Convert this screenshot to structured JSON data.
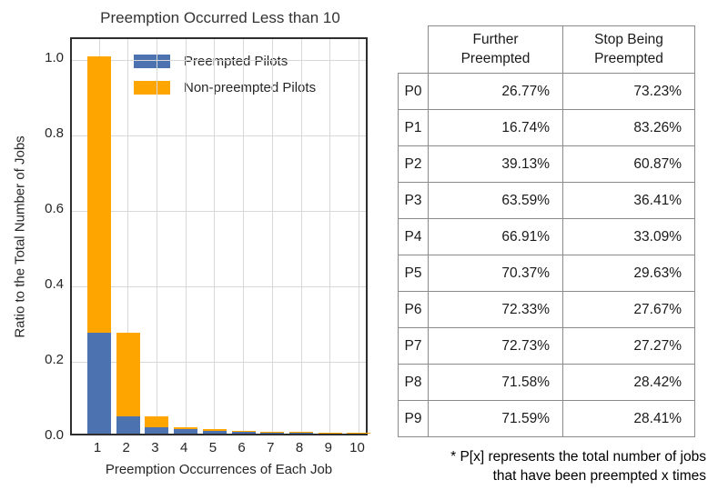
{
  "chart": {
    "title": "Preemption Occurred Less than 10",
    "xlabel": "Preemption Occurrences of Each Job",
    "ylabel": "Ratio to the Total Number of Jobs",
    "yticks": [
      {
        "label": "0.0",
        "value": 0.0
      },
      {
        "label": "0.2",
        "value": 0.2
      },
      {
        "label": "0.4",
        "value": 0.4
      },
      {
        "label": "0.6",
        "value": 0.6
      },
      {
        "label": "0.8",
        "value": 0.8
      },
      {
        "label": "1.0",
        "value": 1.0
      }
    ],
    "colors": {
      "preempted": "#4C72B0",
      "non_preempted": "#FFA500",
      "grid": "#D8D8D8",
      "spine": "#2E2E2E"
    },
    "legend": {
      "items": [
        {
          "label": "Preempted Pilots",
          "color": "#4C72B0"
        },
        {
          "label": "Non-preempted Pilots",
          "color": "#FFA500"
        }
      ]
    }
  },
  "chart_data": {
    "type": "bar",
    "stacked": true,
    "title": "Preemption Occurred Less than 10",
    "xlabel": "Preemption Occurrences of Each Job",
    "ylabel": "Ratio to the Total Number of Jobs",
    "categories": [
      "1",
      "2",
      "3",
      "4",
      "5",
      "6",
      "7",
      "8",
      "9",
      "10"
    ],
    "series": [
      {
        "name": "Preempted Pilots",
        "color": "#4C72B0",
        "values": [
          0.2677,
          0.0448,
          0.0175,
          0.0111,
          0.0074,
          0.0052,
          0.0038,
          0.0028,
          0.002,
          0.0014
        ]
      },
      {
        "name": "Non-preempted Pilots",
        "color": "#FFA500",
        "values": [
          0.7323,
          0.2229,
          0.0273,
          0.0064,
          0.0037,
          0.0023,
          0.0015,
          0.001,
          0.0008,
          0.0006
        ]
      }
    ],
    "ylim": [
      0.0,
      1.05
    ],
    "grid": true,
    "legend_position": "upper left inside"
  },
  "table": {
    "headers": [
      {
        "line1": "Further",
        "line2": "Preempted"
      },
      {
        "line1": "Stop Being",
        "line2": "Preempted"
      }
    ],
    "rows": [
      {
        "label": "P0",
        "further": "26.77%",
        "stop": "73.23%"
      },
      {
        "label": "P1",
        "further": "16.74%",
        "stop": "83.26%"
      },
      {
        "label": "P2",
        "further": "39.13%",
        "stop": "60.87%"
      },
      {
        "label": "P3",
        "further": "63.59%",
        "stop": "36.41%"
      },
      {
        "label": "P4",
        "further": "66.91%",
        "stop": "33.09%"
      },
      {
        "label": "P5",
        "further": "70.37%",
        "stop": "29.63%"
      },
      {
        "label": "P6",
        "further": "72.33%",
        "stop": "27.67%"
      },
      {
        "label": "P7",
        "further": "72.73%",
        "stop": "27.27%"
      },
      {
        "label": "P8",
        "further": "71.58%",
        "stop": "28.42%"
      },
      {
        "label": "P9",
        "further": "71.59%",
        "stop": "28.41%"
      }
    ],
    "footnote_line1": "* P[x] represents the total number of jobs",
    "footnote_line2": "that have been preempted x times"
  }
}
